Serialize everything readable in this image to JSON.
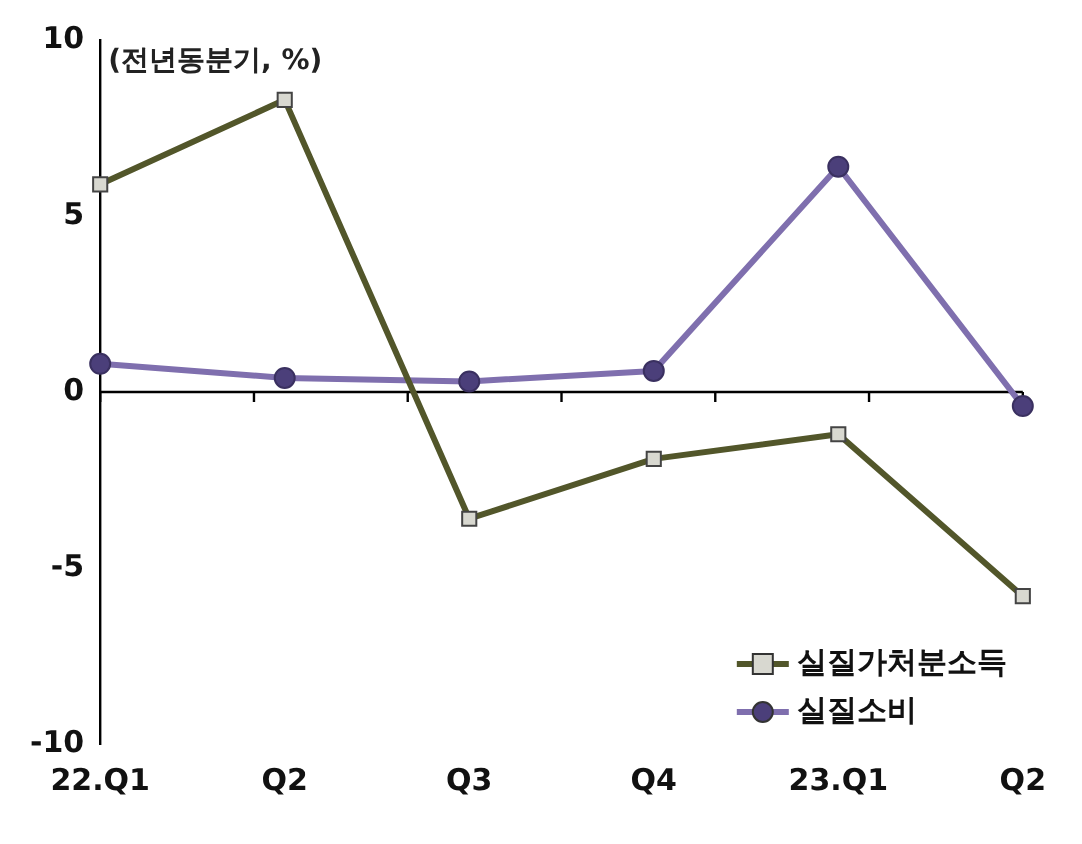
{
  "chart_data": {
    "type": "line",
    "ylabel": "(전년동분기, %)",
    "categories": [
      "22.Q1",
      "Q2",
      "Q3",
      "Q4",
      "23.Q1",
      "Q2"
    ],
    "series": [
      {
        "name": "실질가처분소득",
        "color": "#52562a",
        "marker": "square",
        "values": [
          5.9,
          8.3,
          -3.6,
          -1.9,
          -1.2,
          -5.8
        ]
      },
      {
        "name": "실질소비",
        "color": "#7f6fae",
        "marker": "circle",
        "values": [
          0.8,
          0.4,
          0.3,
          0.6,
          6.4,
          -0.4
        ]
      }
    ],
    "ylim": [
      -10,
      10
    ],
    "yticks": [
      -10,
      -5,
      0,
      5,
      10
    ],
    "grid": false,
    "legend": "bottom right",
    "ref_lines": [
      {
        "axis": "y",
        "value": 0,
        "color": "#000000"
      }
    ]
  }
}
